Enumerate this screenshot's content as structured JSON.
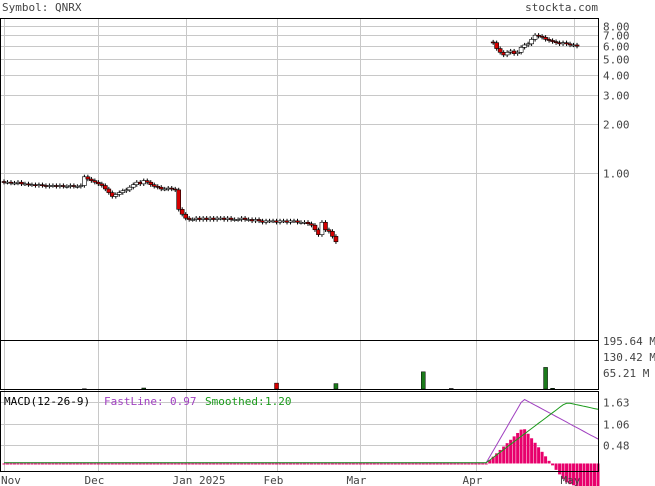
{
  "header": {
    "symbol_label": "Symbol: QNRX",
    "site": "stockta.com"
  },
  "colors": {
    "background": "#ffffff",
    "grid": "#c8c8c8",
    "border": "#000000",
    "up_body": "#ffffff",
    "down_body": "#d40000",
    "volume_up": "#1a7a1a",
    "volume_down": "#d40000",
    "macd_title": "#000000",
    "fastline": "#a040c0",
    "smoothed": "#1a9a1a",
    "histogram": "#e8006c",
    "text": "#444444"
  },
  "chart_data": [
    {
      "type": "candlestick",
      "title": "",
      "y_scale": "log",
      "y_ticks": [
        "8.00",
        "7.00",
        "6.00",
        "5.00",
        "4.00",
        "3.00",
        "2.00",
        "1.00"
      ],
      "x_tick_labels": [
        "Nov",
        "Dec",
        "Jan 2025",
        "Feb",
        "Mar",
        "Apr",
        "May"
      ],
      "grid": true,
      "segments": [
        {
          "label": "pre-split",
          "closes": [
            0.88,
            0.88,
            0.87,
            0.87,
            0.88,
            0.86,
            0.86,
            0.85,
            0.85,
            0.84,
            0.85,
            0.84,
            0.83,
            0.84,
            0.84,
            0.83,
            0.84,
            0.83,
            0.83,
            0.84,
            0.83,
            0.83,
            0.84,
            0.95,
            0.92,
            0.9,
            0.88,
            0.86,
            0.84,
            0.8,
            0.76,
            0.72,
            0.74,
            0.76,
            0.78,
            0.79,
            0.82,
            0.85,
            0.88,
            0.86,
            0.9,
            0.88,
            0.85,
            0.83,
            0.82,
            0.8,
            0.8,
            0.81,
            0.8,
            0.79,
            0.6,
            0.56,
            0.53,
            0.52,
            0.52,
            0.53,
            0.52,
            0.53,
            0.52,
            0.53,
            0.52,
            0.53,
            0.53,
            0.52,
            0.53,
            0.52,
            0.52,
            0.52,
            0.53,
            0.52,
            0.52,
            0.51,
            0.52,
            0.51,
            0.5,
            0.51,
            0.51,
            0.51,
            0.5,
            0.51,
            0.51,
            0.5,
            0.51,
            0.51,
            0.5,
            0.5,
            0.5,
            0.49,
            0.48,
            0.45,
            0.42,
            0.5,
            0.45,
            0.44,
            0.41,
            0.38
          ]
        },
        {
          "label": "post-split",
          "closes": [
            6.3,
            5.8,
            5.5,
            5.3,
            5.5,
            5.6,
            5.4,
            5.5,
            5.9,
            6.1,
            6.2,
            6.6,
            7.0,
            6.9,
            6.8,
            6.6,
            6.5,
            6.4,
            6.3,
            6.2,
            6.3,
            6.2,
            6.1,
            6.1,
            6.0
          ]
        }
      ],
      "volume": {
        "y_ticks": [
          "195.64 M",
          "130.42 M",
          "65.21 M"
        ],
        "bars_m": [
          {
            "day": 23,
            "v": 1.0,
            "dir": "up"
          },
          {
            "day": 40,
            "v": 4.0,
            "dir": "up"
          },
          {
            "day": 78,
            "v": 24.0,
            "dir": "down"
          },
          {
            "day": 95,
            "v": 22.0,
            "dir": "up"
          },
          {
            "day": 120,
            "v": 70.0,
            "dir": "up"
          },
          {
            "day": 128,
            "v": 2.0,
            "dir": "up"
          },
          {
            "day": 155,
            "v": 88.0,
            "dir": "up"
          },
          {
            "day": 157,
            "v": 3.0,
            "dir": "up"
          }
        ],
        "ymax_m": 195.64
      },
      "macd": {
        "label": "MACD(12-26-9)",
        "fast_label": "FastLine:",
        "fast_value": "0.97",
        "smoothed_label": "Smoothed:",
        "smoothed_value": "1.20",
        "y_ticks": [
          "1.63",
          "1.06",
          "0.48"
        ],
        "ymin": -0.2,
        "ymax": 1.9
      }
    }
  ]
}
